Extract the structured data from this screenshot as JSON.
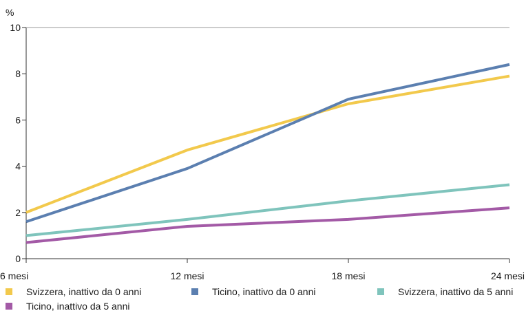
{
  "chart_data": {
    "type": "line",
    "y_unit_label": "%",
    "categories": [
      "6 mesi",
      "12 mesi",
      "18 mesi",
      "24 mesi"
    ],
    "ylim": [
      0,
      10
    ],
    "yticks": [
      0,
      2,
      4,
      6,
      8,
      10
    ],
    "grid": false,
    "legend_position": "bottom",
    "series": [
      {
        "name": "Svizzera, inattivo da 0 anni",
        "color": "#f2c94c",
        "values": [
          2.0,
          4.7,
          6.7,
          7.9
        ]
      },
      {
        "name": "Ticino, inattivo da 0 anni",
        "color": "#5b7fb0",
        "values": [
          1.6,
          3.9,
          6.9,
          8.4
        ]
      },
      {
        "name": "Svizzera, inattivo da 5 anni",
        "color": "#7fc4bc",
        "values": [
          1.0,
          1.7,
          2.5,
          3.2
        ]
      },
      {
        "name": "Ticino, inattivo da 5 anni",
        "color": "#a35aa6",
        "values": [
          0.7,
          1.4,
          1.7,
          2.2
        ]
      }
    ]
  }
}
